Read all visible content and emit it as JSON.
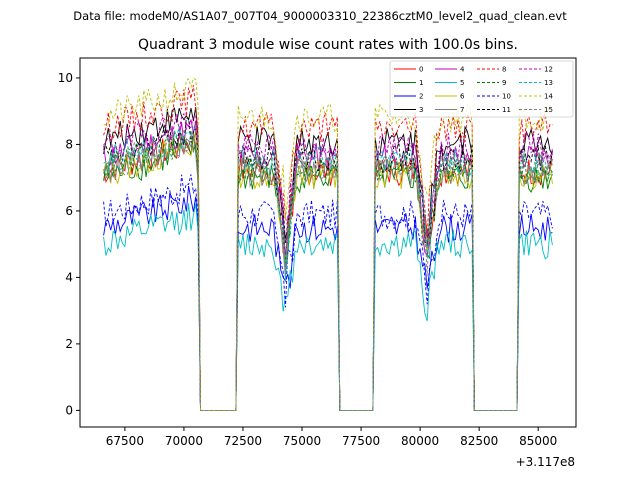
{
  "suptitle": "Data file: modeM0/AS1A07_007T04_9000003310_22386cztM0_level2_quad_clean.evt",
  "chart_data": {
    "type": "line",
    "title": "Quadrant 3 module wise count rates with 100.0s bins.",
    "xlabel": "",
    "ylabel": "",
    "x_offset_label": "+3.117e8",
    "xlim": [
      65600,
      86600
    ],
    "ylim": [
      -0.5,
      10.6
    ],
    "xticks": [
      67500,
      70000,
      72500,
      75000,
      77500,
      80000,
      82500,
      85000
    ],
    "xtick_labels": [
      "67500",
      "70000",
      "72500",
      "75000",
      "77500",
      "80000",
      "82500",
      "85000"
    ],
    "yticks": [
      0,
      2,
      4,
      6,
      8,
      10
    ],
    "ytick_labels": [
      "0",
      "2",
      "4",
      "6",
      "8",
      "10"
    ],
    "legend_position": "top-right",
    "bin_seconds": 100,
    "x_start": 66600,
    "x_end": 85600,
    "gaps": [
      [
        70600,
        72300
      ],
      [
        76500,
        78100
      ],
      [
        82200,
        84200
      ]
    ],
    "dips": [
      [
        74300,
        0.7
      ],
      [
        80300,
        0.6
      ]
    ],
    "series": [
      {
        "name": "0",
        "color": "#ff0000",
        "dash": "solid",
        "level": 7.2
      },
      {
        "name": "1",
        "color": "#008000",
        "dash": "solid",
        "level": 7.0
      },
      {
        "name": "2",
        "color": "#0000ff",
        "dash": "solid",
        "level": 5.5
      },
      {
        "name": "3",
        "color": "#000000",
        "dash": "solid",
        "level": 8.1
      },
      {
        "name": "4",
        "color": "#bf00bf",
        "dash": "solid",
        "level": 7.6
      },
      {
        "name": "5",
        "color": "#00bfbf",
        "dash": "solid",
        "level": 5.0
      },
      {
        "name": "6",
        "color": "#bfbf00",
        "dash": "solid",
        "level": 7.1
      },
      {
        "name": "7",
        "color": "#808080",
        "dash": "solid",
        "level": 7.2
      },
      {
        "name": "8",
        "color": "#ff0000",
        "dash": "dashed",
        "level": 8.5
      },
      {
        "name": "9",
        "color": "#008000",
        "dash": "dashed",
        "level": 7.3
      },
      {
        "name": "10",
        "color": "#0000ff",
        "dash": "dashed",
        "level": 5.9
      },
      {
        "name": "11",
        "color": "#000000",
        "dash": "dashed",
        "level": 7.6
      },
      {
        "name": "12",
        "color": "#bf00bf",
        "dash": "dashed",
        "level": 7.9
      },
      {
        "name": "13",
        "color": "#00bfbf",
        "dash": "dashed",
        "level": 7.5
      },
      {
        "name": "14",
        "color": "#bfbf00",
        "dash": "dashed",
        "level": 8.8
      },
      {
        "name": "15",
        "color": "#808080",
        "dash": "dashed",
        "level": 7.3
      }
    ]
  }
}
